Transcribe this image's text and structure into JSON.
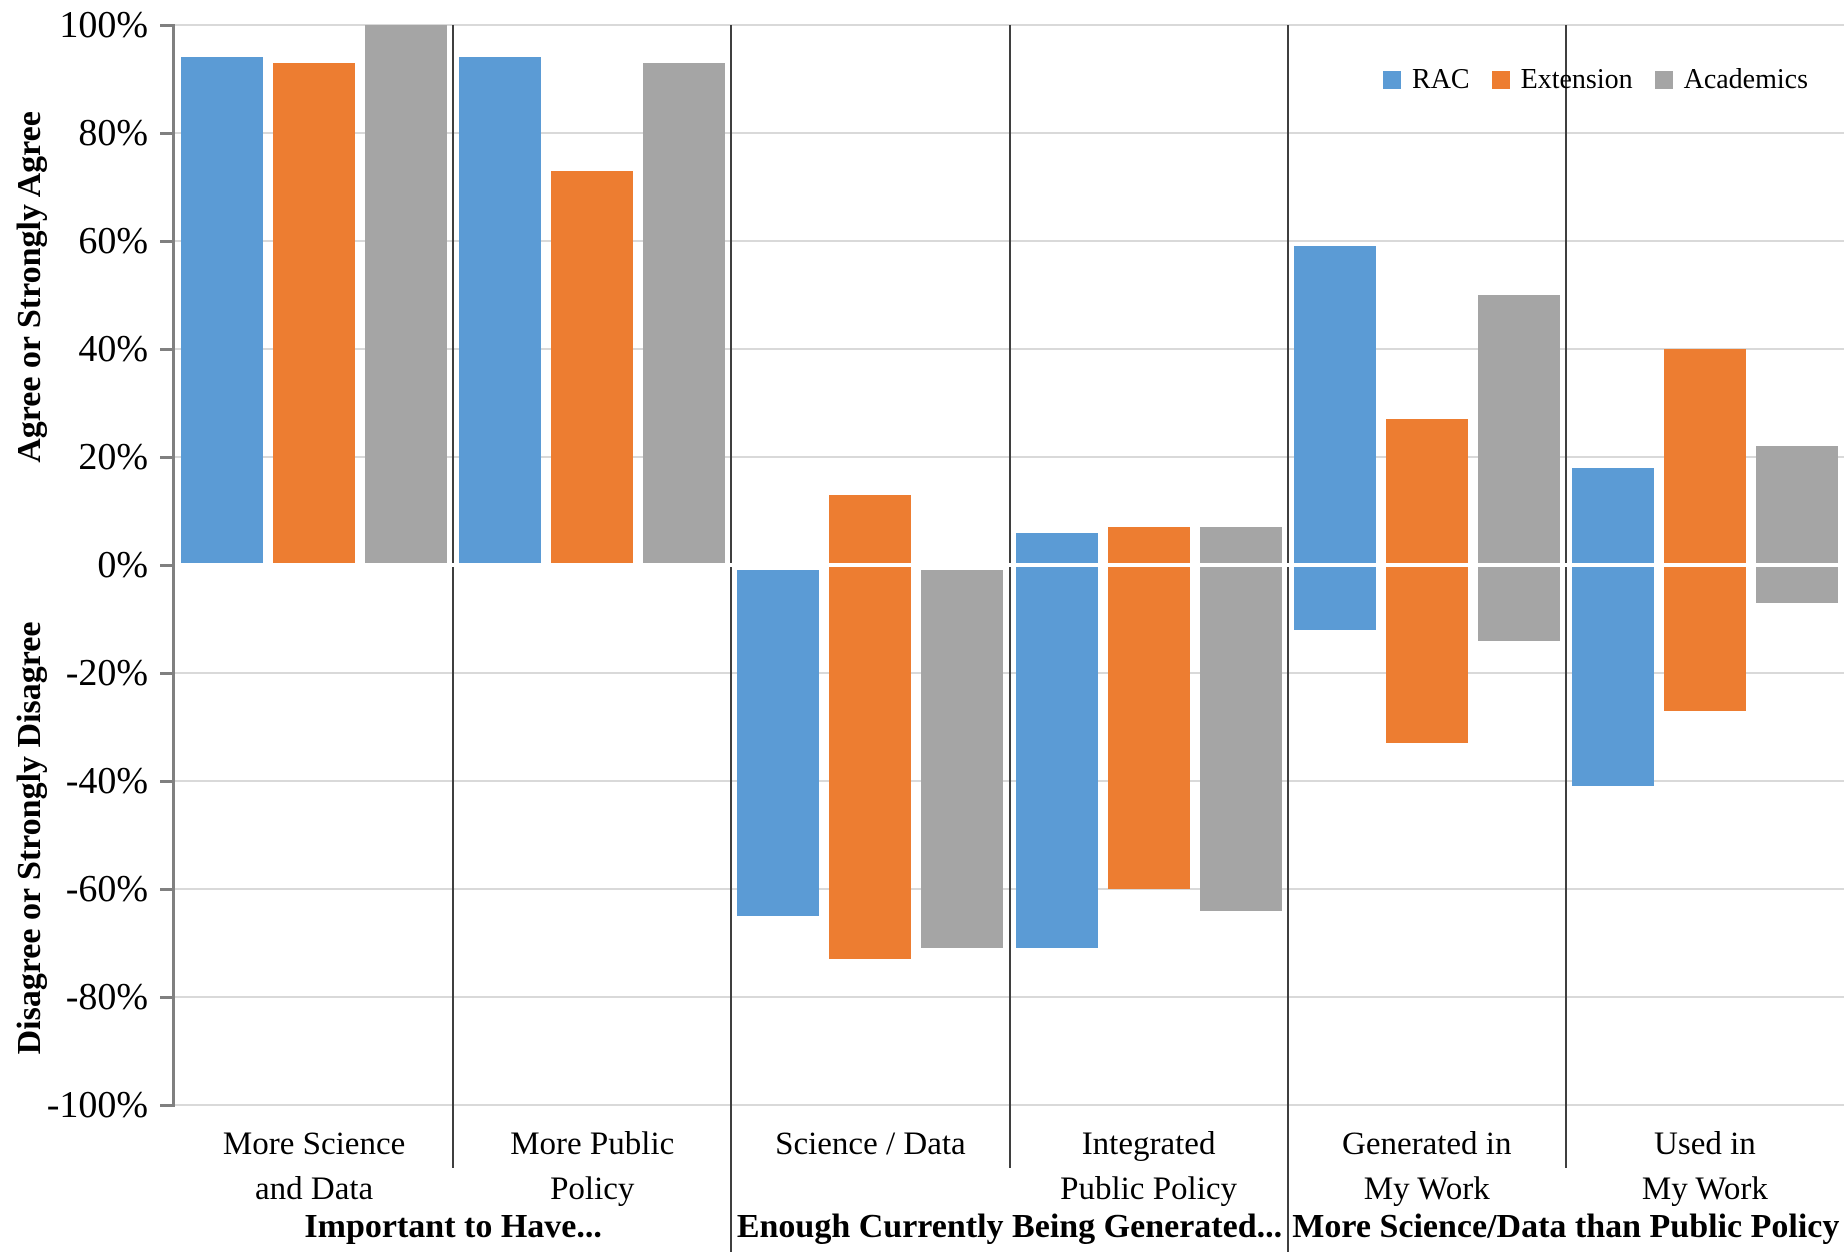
{
  "chart_data": {
    "type": "bar",
    "title": "",
    "ylabel_top": "Agree or Strongly Agree",
    "ylabel_bottom": "Disagree or Strongly Disagree",
    "ylim": [
      -100,
      100
    ],
    "ytick_step": 20,
    "ytick_labels": [
      "100%",
      "80%",
      "60%",
      "40%",
      "20%",
      "0%",
      "-20%",
      "-40%",
      "-60%",
      "-80%",
      "-100%"
    ],
    "grid": true,
    "legend_position": "top-right",
    "units": "percent",
    "categories": [
      "More Science and Data",
      "More Public Policy",
      "Science / Data",
      "Integrated Public Policy",
      "Generated in My Work",
      "Used in My Work"
    ],
    "category_label_lines": [
      [
        "More Science",
        "and Data"
      ],
      [
        "More Public",
        "Policy"
      ],
      [
        "Science / Data"
      ],
      [
        "Integrated",
        "Public Policy"
      ],
      [
        "Generated in",
        "My Work"
      ],
      [
        "Used in",
        "My Work"
      ]
    ],
    "sections": [
      {
        "label": "Important to Have...",
        "span": [
          0,
          1
        ]
      },
      {
        "label": "Enough Currently Being Generated...",
        "span": [
          2,
          3
        ]
      },
      {
        "label": "More Science/Data than Public Policy",
        "span": [
          4,
          5
        ]
      }
    ],
    "series": [
      {
        "name": "RAC",
        "color": "#5B9BD5",
        "values": [
          {
            "top": 94,
            "bottom": 0
          },
          {
            "top": 94,
            "bottom": 0
          },
          {
            "top": -1,
            "bottom": -65
          },
          {
            "top": 6,
            "bottom": -71
          },
          {
            "top": 59,
            "bottom": -12
          },
          {
            "top": 18,
            "bottom": -41
          }
        ]
      },
      {
        "name": "Extension",
        "color": "#ED7D31",
        "values": [
          {
            "top": 93,
            "bottom": 0
          },
          {
            "top": 73,
            "bottom": 0
          },
          {
            "top": 13,
            "bottom": -73
          },
          {
            "top": 7,
            "bottom": -60
          },
          {
            "top": 27,
            "bottom": -33
          },
          {
            "top": 40,
            "bottom": -27
          }
        ]
      },
      {
        "name": "Academics",
        "color": "#A5A5A5",
        "values": [
          {
            "top": 100,
            "bottom": 0
          },
          {
            "top": 93,
            "bottom": 0
          },
          {
            "top": -1,
            "bottom": -71
          },
          {
            "top": 7,
            "bottom": -64
          },
          {
            "top": 50,
            "bottom": -14
          },
          {
            "top": 22,
            "bottom": -7
          }
        ]
      }
    ],
    "colors": {
      "gridline": "#D9D9D9",
      "axis": "#808080",
      "divider": "#3F3F3F",
      "zero_line": "#FFFFFF"
    }
  }
}
